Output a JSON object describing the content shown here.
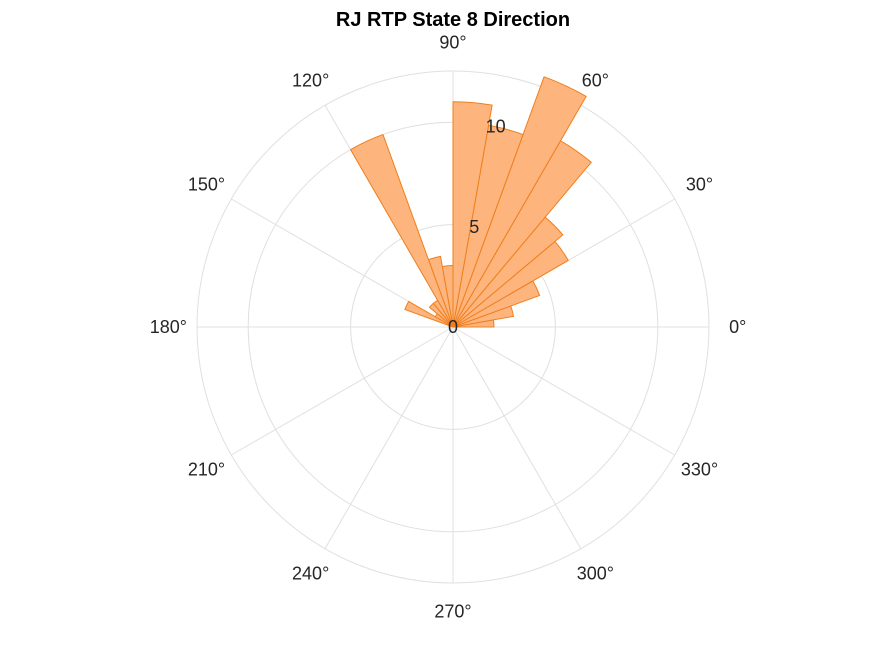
{
  "chart_data": {
    "type": "polar-histogram",
    "title": "RJ  RTP State 8 Direction",
    "theta_ticks": [
      0,
      30,
      60,
      90,
      120,
      150,
      180,
      210,
      240,
      270,
      300,
      330
    ],
    "theta_tick_labels": [
      "0°",
      "30°",
      "60°",
      "90°",
      "120°",
      "150°",
      "180°",
      "210°",
      "240°",
      "270°",
      "300°",
      "330°"
    ],
    "r_ticks": [
      0,
      5,
      10
    ],
    "r_tick_labels": [
      "0",
      "5",
      "10"
    ],
    "rlim": [
      0,
      12.5
    ],
    "bin_width_deg": 10,
    "bins": [
      {
        "start": 0,
        "end": 10,
        "value": 2
      },
      {
        "start": 10,
        "end": 20,
        "value": 3
      },
      {
        "start": 20,
        "end": 30,
        "value": 4.5
      },
      {
        "start": 30,
        "end": 40,
        "value": 6.5
      },
      {
        "start": 40,
        "end": 50,
        "value": 7
      },
      {
        "start": 50,
        "end": 60,
        "value": 10.5
      },
      {
        "start": 60,
        "end": 70,
        "value": 13
      },
      {
        "start": 70,
        "end": 80,
        "value": 10
      },
      {
        "start": 80,
        "end": 90,
        "value": 11
      },
      {
        "start": 90,
        "end": 100,
        "value": 3
      },
      {
        "start": 100,
        "end": 110,
        "value": 3.5
      },
      {
        "start": 110,
        "end": 120,
        "value": 10
      },
      {
        "start": 120,
        "end": 130,
        "value": 1.5
      },
      {
        "start": 130,
        "end": 140,
        "value": 1.5
      },
      {
        "start": 140,
        "end": 150,
        "value": 1
      },
      {
        "start": 150,
        "end": 160,
        "value": 2.5
      }
    ],
    "grid": true,
    "colors": {
      "bar_fill": "#fdb57d",
      "bar_edge": "#f07f1d",
      "grid": "#e0e0e0"
    }
  }
}
